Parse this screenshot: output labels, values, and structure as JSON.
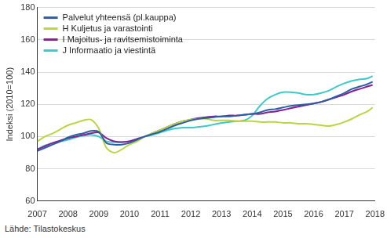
{
  "chart_data": {
    "type": "line",
    "y_label": "Indeksi (2010=100)",
    "source": "Lähde: Tilastokeskus",
    "x": [
      2007,
      2007.25,
      2007.5,
      2007.75,
      2008,
      2008.25,
      2008.5,
      2008.75,
      2009,
      2009.25,
      2009.5,
      2009.75,
      2010,
      2010.25,
      2010.5,
      2010.75,
      2011,
      2011.25,
      2011.5,
      2011.75,
      2012,
      2012.25,
      2012.5,
      2012.75,
      2013,
      2013.25,
      2013.5,
      2013.75,
      2014,
      2014.25,
      2014.5,
      2014.75,
      2015,
      2015.25,
      2015.5,
      2015.75,
      2016,
      2016.25,
      2016.5,
      2016.75,
      2017,
      2017.25,
      2017.5,
      2017.75,
      2017.92
    ],
    "series": [
      {
        "name": "Palvelut yhteensä (pl.kauppa)",
        "color": "#2a5fa8",
        "values": [
          91,
          93,
          95,
          97,
          99.5,
          101,
          102,
          103.5,
          103,
          96,
          95,
          95,
          96,
          98,
          100,
          101.5,
          103,
          105,
          107,
          108.5,
          110,
          111,
          111.5,
          112,
          112.5,
          112.5,
          113,
          113.5,
          114,
          115,
          116.5,
          117,
          118,
          119,
          119.5,
          120,
          120.5,
          121.5,
          123,
          125,
          127,
          129.5,
          131,
          132.5,
          134
        ]
      },
      {
        "name": "H Kuljetus ja varastointi",
        "color": "#b9d640",
        "values": [
          97,
          100,
          102,
          104.5,
          107,
          108.5,
          110,
          110.5,
          105,
          93,
          90,
          92,
          95,
          97,
          100,
          102,
          104,
          106,
          108,
          109.5,
          110.5,
          111,
          111,
          110,
          110,
          110,
          109.5,
          109.5,
          109.5,
          109,
          109,
          109,
          108.5,
          108.5,
          108,
          108,
          107.5,
          107,
          106.5,
          107.5,
          109,
          111,
          113.5,
          115.5,
          118
        ]
      },
      {
        "name": "I Majoitus- ja ravitsemistoiminta",
        "color": "#8b1e8e",
        "values": [
          92,
          94,
          96,
          97.5,
          99,
          100,
          101,
          102,
          102.5,
          99,
          97,
          96.5,
          97,
          98.5,
          100,
          102,
          104,
          106,
          108,
          109.5,
          110.5,
          111.5,
          112,
          112.5,
          112.5,
          113,
          113,
          113.5,
          114,
          114,
          115,
          115.5,
          116.5,
          117.5,
          118.5,
          119.5,
          120.5,
          121.5,
          123,
          124.5,
          126,
          128,
          129.5,
          131,
          132
        ]
      },
      {
        "name": "J Informaatio ja viestintä",
        "color": "#3ec9c9",
        "values": [
          92,
          94.5,
          96,
          97,
          98,
          99.5,
          100.5,
          101,
          100,
          97,
          96.5,
          96.5,
          97,
          98.5,
          100,
          101,
          102.5,
          104,
          105,
          105.5,
          105.5,
          106,
          106.5,
          107.5,
          108.5,
          109,
          109.5,
          110,
          113,
          119,
          123.5,
          126,
          127.5,
          127.5,
          127,
          126,
          126,
          127,
          128.5,
          131,
          133,
          134.5,
          135.5,
          136,
          137.5
        ]
      }
    ],
    "xlim": [
      2007,
      2018
    ],
    "xticks": [
      2007,
      2008,
      2009,
      2010,
      2011,
      2012,
      2013,
      2014,
      2015,
      2016,
      2017,
      2018
    ],
    "ylim": [
      60,
      180
    ],
    "yticks": [
      60,
      80,
      100,
      120,
      140,
      160,
      180
    ],
    "grid": true,
    "legend": "upper left"
  }
}
